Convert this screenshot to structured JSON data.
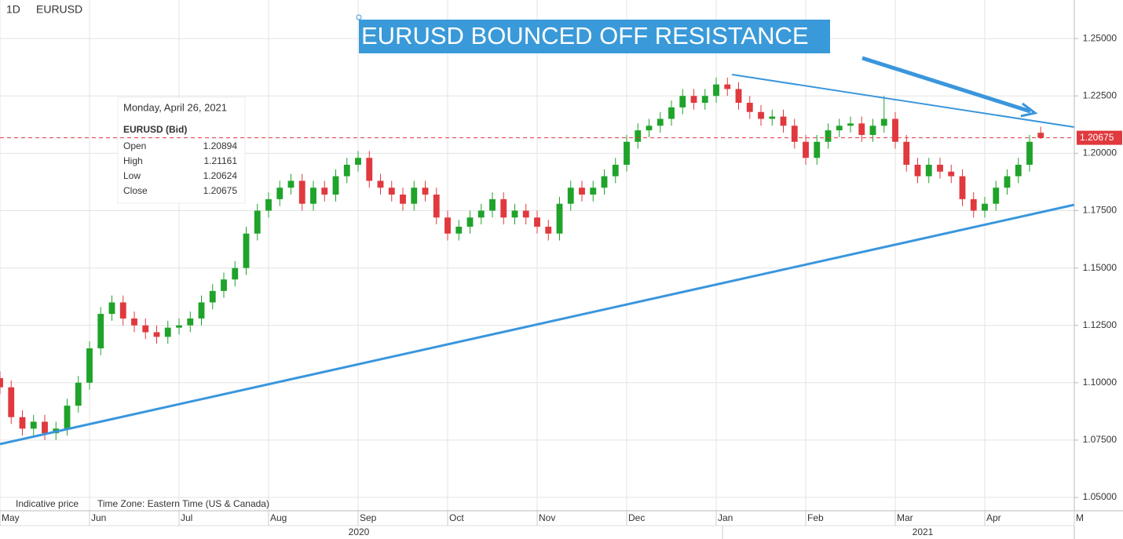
{
  "chart_data": {
    "type": "candlestick",
    "title": "EURUSD BOUNCED OFF RESISTANCE",
    "interval": "1D",
    "symbol": "EURUSD",
    "footer": [
      "Indicative price",
      "Time Zone: Eastern Time (US & Canada)"
    ],
    "years": [
      "2020",
      "2021"
    ],
    "tooltip": {
      "date": "Monday, April 26, 2021",
      "symbol": "EURUSD (Bid)",
      "labels": [
        "Open",
        "High",
        "Low",
        "Close"
      ]
    },
    "up_color": "#1fa32a",
    "down_color": "#e0393e",
    "grid": true,
    "categories": [
      null,
      null,
      null,
      null,
      null,
      null,
      null,
      null,
      null,
      null,
      null,
      null,
      null,
      null,
      null,
      null,
      null,
      null,
      null,
      null,
      null,
      null,
      null,
      null,
      null,
      null,
      null,
      null,
      null,
      null,
      null,
      null,
      null,
      null,
      null,
      null,
      null,
      null,
      null,
      null,
      null,
      null,
      null,
      null,
      null,
      null,
      null,
      null,
      null,
      null,
      null,
      null,
      null,
      null,
      null,
      null,
      null,
      null,
      null,
      null,
      null,
      null,
      null,
      null,
      null,
      null,
      null,
      null,
      null,
      null,
      null,
      null,
      null,
      null,
      null,
      null,
      null,
      null,
      null,
      null,
      null,
      null,
      null,
      null,
      null,
      null,
      null,
      null,
      null,
      null,
      null,
      null,
      null,
      null
    ],
    "open": [
      1.102,
      1.098,
      1.085,
      1.08,
      1.083,
      1.078,
      1.08,
      1.09,
      1.1,
      1.115,
      1.13,
      1.135,
      1.128,
      1.125,
      1.122,
      1.12,
      1.124,
      1.125,
      1.128,
      1.135,
      1.14,
      1.145,
      1.15,
      1.165,
      1.175,
      1.18,
      1.185,
      1.188,
      1.178,
      1.185,
      1.182,
      1.19,
      1.195,
      1.198,
      1.188,
      1.185,
      1.182,
      1.178,
      1.185,
      1.182,
      1.172,
      1.165,
      1.168,
      1.172,
      1.175,
      1.18,
      1.172,
      1.175,
      1.172,
      1.168,
      1.165,
      1.178,
      1.185,
      1.182,
      1.185,
      1.19,
      1.195,
      1.205,
      1.21,
      1.212,
      1.215,
      1.22,
      1.225,
      1.222,
      1.225,
      1.23,
      1.228,
      1.222,
      1.218,
      1.215,
      1.216,
      1.212,
      1.205,
      1.198,
      1.205,
      1.21,
      1.212,
      1.213,
      1.208,
      1.212,
      1.215,
      1.205,
      1.195,
      1.19,
      1.195,
      1.192,
      1.19,
      1.18,
      1.175,
      1.178,
      1.185,
      1.19,
      1.195,
      1.20894
    ],
    "high": [
      1.105,
      1.101,
      1.088,
      1.086,
      1.086,
      1.083,
      1.093,
      1.103,
      1.118,
      1.133,
      1.138,
      1.138,
      1.131,
      1.128,
      1.125,
      1.127,
      1.128,
      1.131,
      1.138,
      1.143,
      1.148,
      1.153,
      1.168,
      1.178,
      1.183,
      1.188,
      1.191,
      1.191,
      1.188,
      1.188,
      1.193,
      1.198,
      1.201,
      1.201,
      1.191,
      1.188,
      1.185,
      1.188,
      1.188,
      1.185,
      1.175,
      1.171,
      1.175,
      1.178,
      1.183,
      1.183,
      1.178,
      1.178,
      1.175,
      1.171,
      1.181,
      1.188,
      1.188,
      1.188,
      1.193,
      1.198,
      1.208,
      1.213,
      1.215,
      1.218,
      1.223,
      1.228,
      1.228,
      1.228,
      1.233,
      1.233,
      1.231,
      1.225,
      1.221,
      1.219,
      1.219,
      1.215,
      1.208,
      1.208,
      1.213,
      1.215,
      1.216,
      1.216,
      1.215,
      1.225,
      1.218,
      1.208,
      1.198,
      1.198,
      1.198,
      1.195,
      1.193,
      1.183,
      1.181,
      1.188,
      1.193,
      1.198,
      1.208,
      1.21161
    ],
    "low": [
      1.095,
      1.082,
      1.077,
      1.077,
      1.075,
      1.075,
      1.077,
      1.087,
      1.097,
      1.112,
      1.127,
      1.125,
      1.122,
      1.119,
      1.117,
      1.117,
      1.121,
      1.122,
      1.125,
      1.132,
      1.137,
      1.142,
      1.147,
      1.162,
      1.172,
      1.177,
      1.182,
      1.175,
      1.175,
      1.179,
      1.179,
      1.187,
      1.192,
      1.185,
      1.182,
      1.179,
      1.175,
      1.175,
      1.179,
      1.169,
      1.162,
      1.162,
      1.165,
      1.169,
      1.172,
      1.169,
      1.169,
      1.169,
      1.165,
      1.162,
      1.162,
      1.175,
      1.179,
      1.179,
      1.182,
      1.187,
      1.192,
      1.202,
      1.207,
      1.209,
      1.212,
      1.217,
      1.219,
      1.219,
      1.222,
      1.225,
      1.219,
      1.215,
      1.212,
      1.212,
      1.209,
      1.202,
      1.195,
      1.195,
      1.202,
      1.207,
      1.209,
      1.205,
      1.205,
      1.209,
      1.202,
      1.192,
      1.187,
      1.187,
      1.189,
      1.187,
      1.177,
      1.172,
      1.172,
      1.175,
      1.182,
      1.187,
      1.192,
      1.20624
    ],
    "close": [
      1.098,
      1.085,
      1.08,
      1.083,
      1.078,
      1.08,
      1.09,
      1.1,
      1.115,
      1.13,
      1.135,
      1.128,
      1.125,
      1.122,
      1.12,
      1.124,
      1.125,
      1.128,
      1.135,
      1.14,
      1.145,
      1.15,
      1.165,
      1.175,
      1.18,
      1.185,
      1.188,
      1.178,
      1.185,
      1.182,
      1.19,
      1.195,
      1.198,
      1.188,
      1.185,
      1.182,
      1.178,
      1.185,
      1.182,
      1.172,
      1.165,
      1.168,
      1.172,
      1.175,
      1.18,
      1.172,
      1.175,
      1.172,
      1.168,
      1.165,
      1.178,
      1.185,
      1.182,
      1.185,
      1.19,
      1.195,
      1.205,
      1.21,
      1.212,
      1.215,
      1.22,
      1.225,
      1.222,
      1.225,
      1.23,
      1.228,
      1.222,
      1.218,
      1.215,
      1.216,
      1.212,
      1.205,
      1.198,
      1.205,
      1.21,
      1.212,
      1.213,
      1.208,
      1.212,
      1.215,
      1.205,
      1.195,
      1.19,
      1.195,
      1.192,
      1.19,
      1.18,
      1.175,
      1.178,
      1.185,
      1.19,
      1.195,
      1.205,
      1.20675
    ],
    "xlim": [
      0,
      96
    ],
    "xticks": [
      {
        "value": 0,
        "label": "May"
      },
      {
        "value": 8,
        "label": "Jun"
      },
      {
        "value": 16,
        "label": "Jul"
      },
      {
        "value": 24,
        "label": "Aug"
      },
      {
        "value": 32,
        "label": "Sep"
      },
      {
        "value": 40,
        "label": "Oct"
      },
      {
        "value": 48,
        "label": "Nov"
      },
      {
        "value": 56,
        "label": "Dec"
      },
      {
        "value": 64,
        "label": "Jan"
      },
      {
        "value": 72,
        "label": "Feb"
      },
      {
        "value": 80,
        "label": "Mar"
      },
      {
        "value": 88,
        "label": "Apr"
      },
      {
        "value": 96,
        "label": "M"
      }
    ],
    "ylim": [
      1.0442,
      1.2668
    ],
    "yticks": [
      {
        "value": 1.05,
        "label": "1.05000"
      },
      {
        "value": 1.075,
        "label": "1.07500"
      },
      {
        "value": 1.1,
        "label": "1.10000"
      },
      {
        "value": 1.125,
        "label": "1.12500"
      },
      {
        "value": 1.15,
        "label": "1.15000"
      },
      {
        "value": 1.175,
        "label": "1.17500"
      },
      {
        "value": 1.2,
        "label": "1.20000"
      },
      {
        "value": 1.225,
        "label": "1.22500"
      },
      {
        "value": 1.25,
        "label": "1.25000"
      }
    ]
  }
}
